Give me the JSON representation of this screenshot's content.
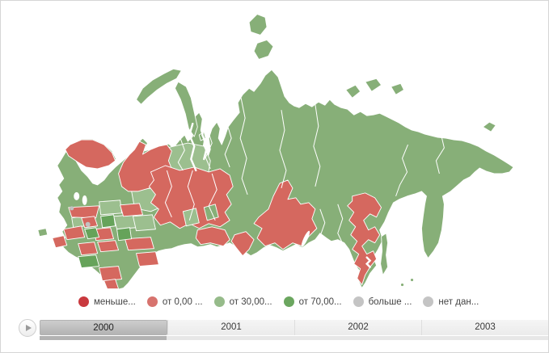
{
  "map": {
    "palette": {
      "region_red": "#d5685f",
      "region_red_dark": "#c9393e",
      "region_green": "#87af78",
      "region_green_light": "#9cbf8f",
      "region_green_dark": "#66a35a",
      "region_gray": "#c2c2c2",
      "border": "#ffffff",
      "sea": "#ffffff"
    }
  },
  "legend": {
    "items": [
      {
        "label": "меньше...",
        "color": "#c9393e"
      },
      {
        "label": "от 0,00 ...",
        "color": "#d7736e"
      },
      {
        "label": "от 30,00...",
        "color": "#96bb8a"
      },
      {
        "label": "от 70,00...",
        "color": "#6ba65f"
      },
      {
        "label": "больше ...",
        "color": "#c4c4c4"
      },
      {
        "label": "нет дан...",
        "color": "#c4c4c4"
      }
    ]
  },
  "timeline": {
    "years": [
      "2000",
      "2001",
      "2002",
      "2003"
    ],
    "selected_year": "2000",
    "progress_fraction": 0.25
  }
}
